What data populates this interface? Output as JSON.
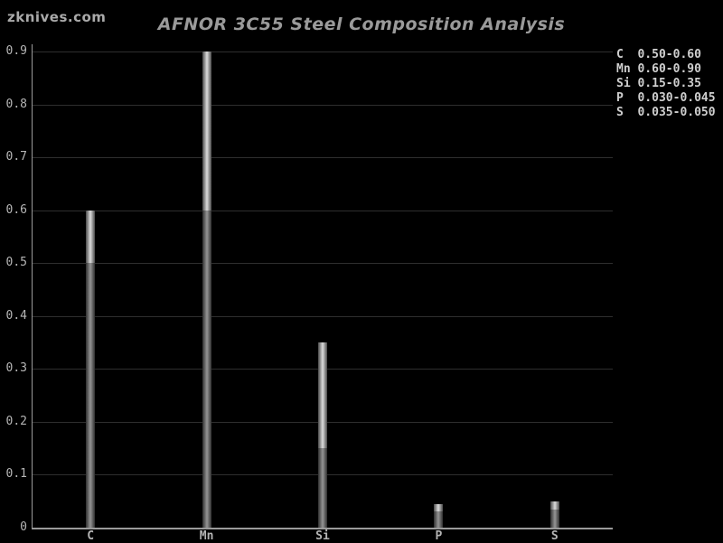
{
  "watermark": "zknives.com",
  "chart_data": {
    "type": "bar",
    "subtype": "range-bar",
    "title": "AFNOR 3C55 Steel Composition Analysis",
    "xlabel": "",
    "ylabel": "",
    "categories": [
      "C",
      "Mn",
      "Si",
      "P",
      "S"
    ],
    "series": [
      {
        "name": "min",
        "values": [
          0.5,
          0.6,
          0.15,
          0.03,
          0.035
        ]
      },
      {
        "name": "max",
        "values": [
          0.6,
          0.9,
          0.35,
          0.045,
          0.05
        ]
      }
    ],
    "ylim": [
      0,
      0.9
    ],
    "yticks": [
      0,
      0.1,
      0.2,
      0.3,
      0.4,
      0.5,
      0.6,
      0.7,
      0.8,
      0.9
    ],
    "ytick_labels": [
      "0",
      "0.1",
      "0.2",
      "0.3",
      "0.4",
      "0.5",
      "0.6",
      "0.7",
      "0.8",
      "0.9"
    ],
    "grid": true,
    "legend_position": "top-right",
    "legend": [
      {
        "element": "C",
        "range": "0.50-0.60"
      },
      {
        "element": "Mn",
        "range": "0.60-0.90"
      },
      {
        "element": "Si",
        "range": "0.15-0.35"
      },
      {
        "element": "P",
        "range": "0.030-0.045"
      },
      {
        "element": "S",
        "range": "0.035-0.050"
      }
    ],
    "colors": {
      "background": "#000000",
      "title": "#9a9a9a",
      "watermark": "#aaaaaa",
      "gridline": "#2e2e2e",
      "axis_line": "#9a9a9a",
      "tick_label": "#b5b5b5",
      "legend_text": "#cfcfcf",
      "bar_range_center": "#dcdcdc",
      "bar_range_edge": "#4a4a4a",
      "bar_base_center": "#959595",
      "bar_base_edge": "#303030"
    }
  }
}
